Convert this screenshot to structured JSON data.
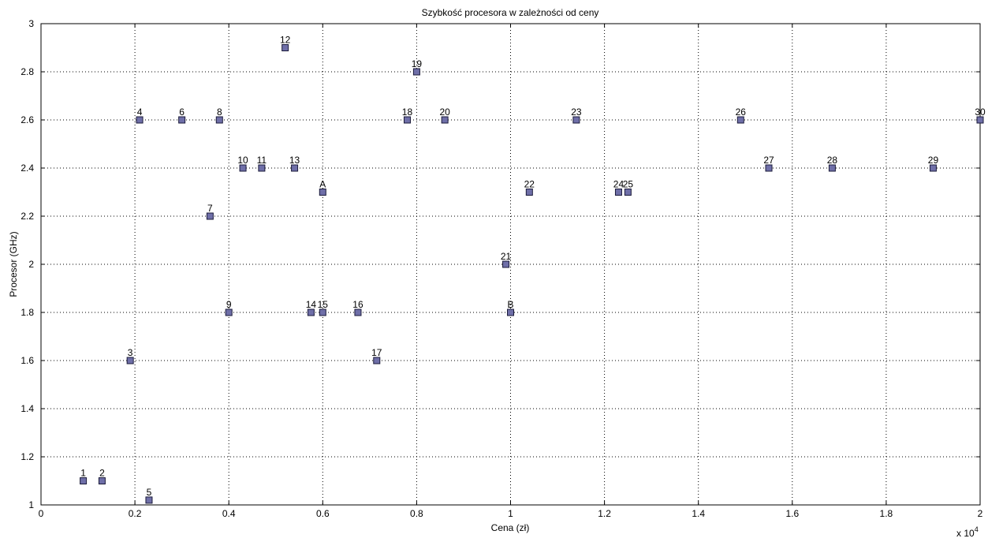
{
  "chart_data": {
    "type": "scatter",
    "title": "Szybkość procesora w zależności od ceny",
    "xlabel": "Cena (zł)",
    "ylabel": "Procesor (GHz)",
    "x_multiplier_label": "x 10",
    "x_multiplier_exponent": "4",
    "xlim": [
      0,
      20000
    ],
    "ylim": [
      1,
      3
    ],
    "xticks": [
      0,
      2000,
      4000,
      6000,
      8000,
      10000,
      12000,
      14000,
      16000,
      18000,
      20000
    ],
    "xtick_labels": [
      "0",
      "0.2",
      "0.4",
      "0.6",
      "0.8",
      "1",
      "1.2",
      "1.4",
      "1.6",
      "1.8",
      "2"
    ],
    "yticks": [
      1,
      1.2,
      1.4,
      1.6,
      1.8,
      2,
      2.2,
      2.4,
      2.6,
      2.8,
      3
    ],
    "ytick_labels": [
      "1",
      "1.2",
      "1.4",
      "1.6",
      "1.8",
      "2",
      "2.2",
      "2.4",
      "2.6",
      "2.8",
      "3"
    ],
    "grid": true,
    "marker": "square",
    "marker_color": "#6f6fa8",
    "points": [
      {
        "label": "1",
        "x": 900,
        "y": 1.1
      },
      {
        "label": "2",
        "x": 1300,
        "y": 1.1
      },
      {
        "label": "3",
        "x": 1900,
        "y": 1.6
      },
      {
        "label": "4",
        "x": 2100,
        "y": 2.6
      },
      {
        "label": "5",
        "x": 2300,
        "y": 1.02
      },
      {
        "label": "6",
        "x": 3000,
        "y": 2.6
      },
      {
        "label": "7",
        "x": 3600,
        "y": 2.2
      },
      {
        "label": "8",
        "x": 3800,
        "y": 2.6
      },
      {
        "label": "9",
        "x": 4000,
        "y": 1.8
      },
      {
        "label": "10",
        "x": 4300,
        "y": 2.4
      },
      {
        "label": "11",
        "x": 4700,
        "y": 2.4
      },
      {
        "label": "12",
        "x": 5200,
        "y": 2.9
      },
      {
        "label": "13",
        "x": 5400,
        "y": 2.4
      },
      {
        "label": "14",
        "x": 5750,
        "y": 1.8
      },
      {
        "label": "15",
        "x": 6000,
        "y": 1.8
      },
      {
        "label": "A",
        "x": 6000,
        "y": 2.3
      },
      {
        "label": "16",
        "x": 6750,
        "y": 1.8
      },
      {
        "label": "17",
        "x": 7150,
        "y": 1.6
      },
      {
        "label": "18",
        "x": 7800,
        "y": 2.6
      },
      {
        "label": "19",
        "x": 8000,
        "y": 2.8
      },
      {
        "label": "20",
        "x": 8600,
        "y": 2.6
      },
      {
        "label": "21",
        "x": 9900,
        "y": 2.0
      },
      {
        "label": "B",
        "x": 10000,
        "y": 1.8
      },
      {
        "label": "22",
        "x": 10400,
        "y": 2.3
      },
      {
        "label": "23",
        "x": 11400,
        "y": 2.6
      },
      {
        "label": "24",
        "x": 12300,
        "y": 2.3
      },
      {
        "label": "25",
        "x": 12500,
        "y": 2.3
      },
      {
        "label": "26",
        "x": 14900,
        "y": 2.6
      },
      {
        "label": "27",
        "x": 15500,
        "y": 2.4
      },
      {
        "label": "28",
        "x": 16850,
        "y": 2.4
      },
      {
        "label": "29",
        "x": 19000,
        "y": 2.4
      },
      {
        "label": "30",
        "x": 20000,
        "y": 2.6
      }
    ]
  }
}
